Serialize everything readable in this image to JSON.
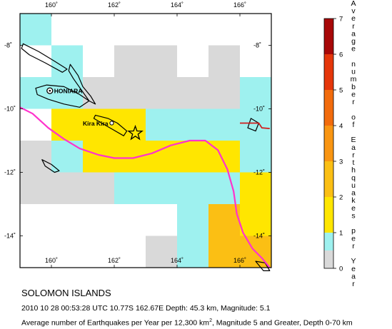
{
  "map": {
    "lon_ticks": [
      {
        "lon": 160,
        "label": "160˚"
      },
      {
        "lon": 162,
        "label": "162˚"
      },
      {
        "lon": 164,
        "label": "164˚"
      },
      {
        "lon": 166,
        "label": "166˚"
      }
    ],
    "lat_ticks": [
      {
        "lat": -8,
        "label": "-8˚"
      },
      {
        "lat": -10,
        "label": "-10˚"
      },
      {
        "lat": -12,
        "label": "-12˚"
      },
      {
        "lat": -14,
        "label": "-14˚"
      }
    ],
    "place_labels": [
      {
        "name": "HONIARA",
        "lon": 159.95,
        "lat": -9.43
      },
      {
        "name": "Kira Kira",
        "lon": 161.92,
        "lat": -10.45
      }
    ],
    "epicenter": {
      "lon": 162.67,
      "lat": -10.77
    },
    "grid_cells": [
      {
        "lon": 159.5,
        "lat": -7.5,
        "level": 0.8
      },
      {
        "lon": 160.5,
        "lat": -8.5,
        "level": 0.9
      },
      {
        "lon": 162.5,
        "lat": -8.5,
        "level": 0.3
      },
      {
        "lon": 163.5,
        "lat": -8.5,
        "level": 0.3
      },
      {
        "lon": 165.5,
        "lat": -8.5,
        "level": 0.3
      },
      {
        "lon": 159.5,
        "lat": -9.5,
        "level": 0.9
      },
      {
        "lon": 160.5,
        "lat": -9.5,
        "level": 0.9
      },
      {
        "lon": 161.5,
        "lat": -9.5,
        "level": 0.3
      },
      {
        "lon": 162.5,
        "lat": -9.5,
        "level": 0.4
      },
      {
        "lon": 163.5,
        "lat": -9.5,
        "level": 0.4
      },
      {
        "lon": 164.5,
        "lat": -9.5,
        "level": 0.3
      },
      {
        "lon": 165.5,
        "lat": -9.5,
        "level": 0.4
      },
      {
        "lon": 166.5,
        "lat": -9.5,
        "level": 0.5
      },
      {
        "lon": 160.5,
        "lat": -10.5,
        "level": 1.6
      },
      {
        "lon": 161.5,
        "lat": -10.5,
        "level": 1.6
      },
      {
        "lon": 162.5,
        "lat": -10.5,
        "level": 1.6
      },
      {
        "lon": 163.5,
        "lat": -10.5,
        "level": 0.9
      },
      {
        "lon": 164.5,
        "lat": -10.5,
        "level": 0.9
      },
      {
        "lon": 165.5,
        "lat": -10.5,
        "level": 0.9
      },
      {
        "lon": 166.5,
        "lat": -10.5,
        "level": 0.9
      },
      {
        "lon": 159.5,
        "lat": -11.5,
        "level": 0.3
      },
      {
        "lon": 160.5,
        "lat": -11.5,
        "level": 0.9
      },
      {
        "lon": 161.5,
        "lat": -11.5,
        "level": 1.6
      },
      {
        "lon": 162.5,
        "lat": -11.5,
        "level": 1.6
      },
      {
        "lon": 163.5,
        "lat": -11.5,
        "level": 1.6
      },
      {
        "lon": 164.5,
        "lat": -11.5,
        "level": 1.6
      },
      {
        "lon": 165.5,
        "lat": -11.5,
        "level": 1.6
      },
      {
        "lon": 166.5,
        "lat": -11.5,
        "level": 0.9
      },
      {
        "lon": 159.5,
        "lat": -12.5,
        "level": 0.3
      },
      {
        "lon": 160.5,
        "lat": -12.5,
        "level": 0.3
      },
      {
        "lon": 161.5,
        "lat": -12.5,
        "level": 0.3
      },
      {
        "lon": 162.5,
        "lat": -12.5,
        "level": 0.9
      },
      {
        "lon": 163.5,
        "lat": -12.5,
        "level": 0.9
      },
      {
        "lon": 164.5,
        "lat": -12.5,
        "level": 0.9
      },
      {
        "lon": 165.5,
        "lat": -12.5,
        "level": 0.9
      },
      {
        "lon": 166.5,
        "lat": -12.5,
        "level": 1.6
      },
      {
        "lon": 164.5,
        "lat": -13.5,
        "level": 0.9
      },
      {
        "lon": 165.5,
        "lat": -13.5,
        "level": 2.2
      },
      {
        "lon": 166.5,
        "lat": -13.5,
        "level": 1.6
      },
      {
        "lon": 163.5,
        "lat": -14.5,
        "level": 0.3
      },
      {
        "lon": 164.5,
        "lat": -14.5,
        "level": 0.9
      },
      {
        "lon": 165.5,
        "lat": -14.5,
        "level": 2.2
      },
      {
        "lon": 166.5,
        "lat": -14.5,
        "level": 2.6
      },
      {
        "lon": 164.5,
        "lat": -15.5,
        "level": 0.3
      },
      {
        "lon": 165.5,
        "lat": -15.5,
        "level": 2.2
      },
      {
        "lon": 166.5,
        "lat": -15.5,
        "level": 2.0
      }
    ],
    "trench": [
      [
        159.0,
        -9.95
      ],
      [
        159.4,
        -10.15
      ],
      [
        159.9,
        -10.6
      ],
      [
        160.4,
        -10.95
      ],
      [
        160.9,
        -11.25
      ],
      [
        161.5,
        -11.45
      ],
      [
        162.0,
        -11.55
      ],
      [
        162.6,
        -11.55
      ],
      [
        163.2,
        -11.4
      ],
      [
        163.8,
        -11.15
      ],
      [
        164.4,
        -11.0
      ],
      [
        164.9,
        -11.0
      ],
      [
        165.3,
        -11.3
      ],
      [
        165.6,
        -11.9
      ],
      [
        165.8,
        -12.6
      ],
      [
        165.9,
        -13.3
      ],
      [
        166.1,
        -13.9
      ],
      [
        166.4,
        -14.4
      ],
      [
        166.7,
        -14.7
      ],
      [
        166.95,
        -15.0
      ]
    ],
    "plate_boundary_ne": [
      [
        166.0,
        -10.45
      ],
      [
        166.6,
        -10.45
      ],
      [
        166.7,
        -10.6
      ],
      [
        166.95,
        -10.62
      ]
    ],
    "islands": [
      [
        [
          159.1,
          -7.95
        ],
        [
          159.6,
          -8.2
        ],
        [
          160.1,
          -8.5
        ],
        [
          160.5,
          -8.75
        ],
        [
          160.35,
          -8.85
        ],
        [
          159.8,
          -8.55
        ],
        [
          159.3,
          -8.3
        ],
        [
          159.05,
          -8.1
        ]
      ],
      [
        [
          160.6,
          -8.6
        ],
        [
          160.85,
          -8.95
        ],
        [
          161.0,
          -9.3
        ],
        [
          161.25,
          -9.6
        ],
        [
          161.4,
          -9.85
        ],
        [
          161.2,
          -9.75
        ],
        [
          160.95,
          -9.4
        ],
        [
          160.7,
          -9.05
        ],
        [
          160.55,
          -8.8
        ]
      ],
      [
        [
          159.5,
          -9.35
        ],
        [
          159.85,
          -9.25
        ],
        [
          160.4,
          -9.3
        ],
        [
          160.9,
          -9.55
        ],
        [
          161.2,
          -9.75
        ],
        [
          160.9,
          -9.95
        ],
        [
          160.4,
          -9.85
        ],
        [
          159.9,
          -9.7
        ],
        [
          159.55,
          -9.55
        ]
      ],
      [
        [
          161.4,
          -10.2
        ],
        [
          161.8,
          -10.3
        ],
        [
          162.1,
          -10.45
        ],
        [
          162.4,
          -10.7
        ],
        [
          162.3,
          -10.85
        ],
        [
          161.95,
          -10.65
        ],
        [
          161.6,
          -10.45
        ],
        [
          161.35,
          -10.3
        ]
      ],
      [
        [
          159.7,
          -11.6
        ],
        [
          160.0,
          -11.75
        ],
        [
          160.25,
          -11.95
        ],
        [
          160.1,
          -12.0
        ],
        [
          159.8,
          -11.8
        ]
      ],
      [
        [
          166.35,
          -10.3
        ],
        [
          166.6,
          -10.45
        ],
        [
          166.5,
          -10.7
        ],
        [
          166.25,
          -10.6
        ]
      ],
      [
        [
          166.5,
          -14.8
        ],
        [
          166.75,
          -15.1
        ],
        [
          166.95,
          -15.1
        ],
        [
          166.8,
          -14.85
        ]
      ]
    ]
  },
  "legend": {
    "title": "Average number of Earthquakes per Year",
    "title_letters": [
      "A",
      "v",
      "e",
      "r",
      "a",
      "g",
      "e",
      "",
      "n",
      "u",
      "m",
      "b",
      "e",
      "r",
      "",
      "o",
      "f",
      "",
      "E",
      "a",
      "r",
      "t",
      "h",
      "q",
      "u",
      "a",
      "k",
      "e",
      "s",
      "",
      "p",
      "e",
      "r",
      "",
      "Y",
      "e",
      "a",
      "r"
    ],
    "ticks": [
      "0",
      "1",
      "2",
      "3",
      "4",
      "5",
      "6",
      "7"
    ],
    "min": 0,
    "max": 7,
    "colors": [
      {
        "from": 0,
        "to": 0.5,
        "color": "#d9d9d9"
      },
      {
        "from": 0.5,
        "to": 1,
        "color": "#9ef1ef"
      },
      {
        "from": 1,
        "to": 2,
        "color": "#ffe600"
      },
      {
        "from": 2,
        "to": 3,
        "color": "#fbbf14"
      },
      {
        "from": 3,
        "to": 4,
        "color": "#f99512"
      },
      {
        "from": 4,
        "to": 5,
        "color": "#f26b0c"
      },
      {
        "from": 5,
        "to": 6,
        "color": "#e5360a"
      },
      {
        "from": 6,
        "to": 7,
        "color": "#a80808"
      }
    ]
  },
  "caption": {
    "region": "SOLOMON ISLANDS",
    "event": "2010 10 28 00:53:28 UTC 10.77S 162.67E Depth: 45.3 km, Magnitude: 5.1",
    "average_prefix": "Average number of Earthquakes per Year per 12,300 km",
    "average_sup": "2",
    "average_suffix": ", Magnitude 5 and Greater, Depth 0-70 km"
  },
  "colors": {
    "trench": "#ff33cc",
    "plate_boundary": "#d11c1c",
    "coast": "#000000",
    "frame": "#000000"
  }
}
